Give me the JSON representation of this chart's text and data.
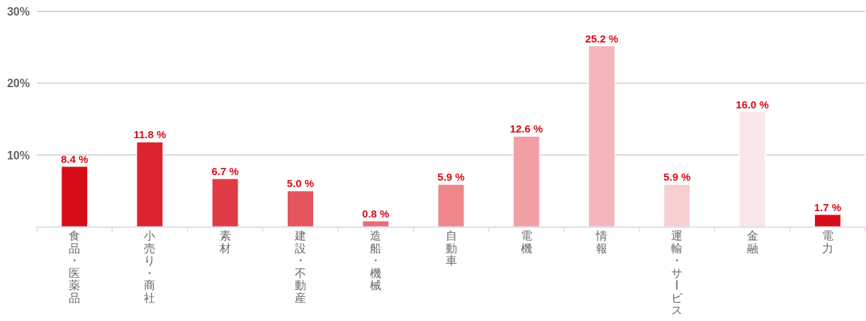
{
  "chart_data": {
    "type": "bar",
    "categories": [
      "食品・医薬品",
      "小売り・商社",
      "素材",
      "建設・不動産",
      "造船・機械",
      "自動車",
      "電機",
      "情報",
      "運輸・サービス",
      "金融",
      "電力"
    ],
    "values": [
      8.4,
      11.8,
      6.7,
      5.0,
      0.8,
      5.9,
      12.6,
      25.2,
      5.9,
      16.0,
      1.7
    ],
    "colors": [
      "#d70c19",
      "#dc2430",
      "#e03c47",
      "#e5555e",
      "#e96d75",
      "#ee868c",
      "#f29ea3",
      "#f4b6ba",
      "#f7ced1",
      "#fbe6e8",
      "#d70c19"
    ],
    "value_labels": [
      "8.4 %",
      "11.8 %",
      "6.7 %",
      "5.0 %",
      "0.8 %",
      "5.9 %",
      "12.6 %",
      "25.2 %",
      "5.9 %",
      "16.0 %",
      "1.7 %"
    ],
    "ylim": [
      0,
      30
    ],
    "yticks": [
      {
        "value": 10,
        "label": "10%"
      },
      {
        "value": 20,
        "label": "20%"
      },
      {
        "value": 30,
        "label": "30%"
      }
    ],
    "grid": "y"
  }
}
